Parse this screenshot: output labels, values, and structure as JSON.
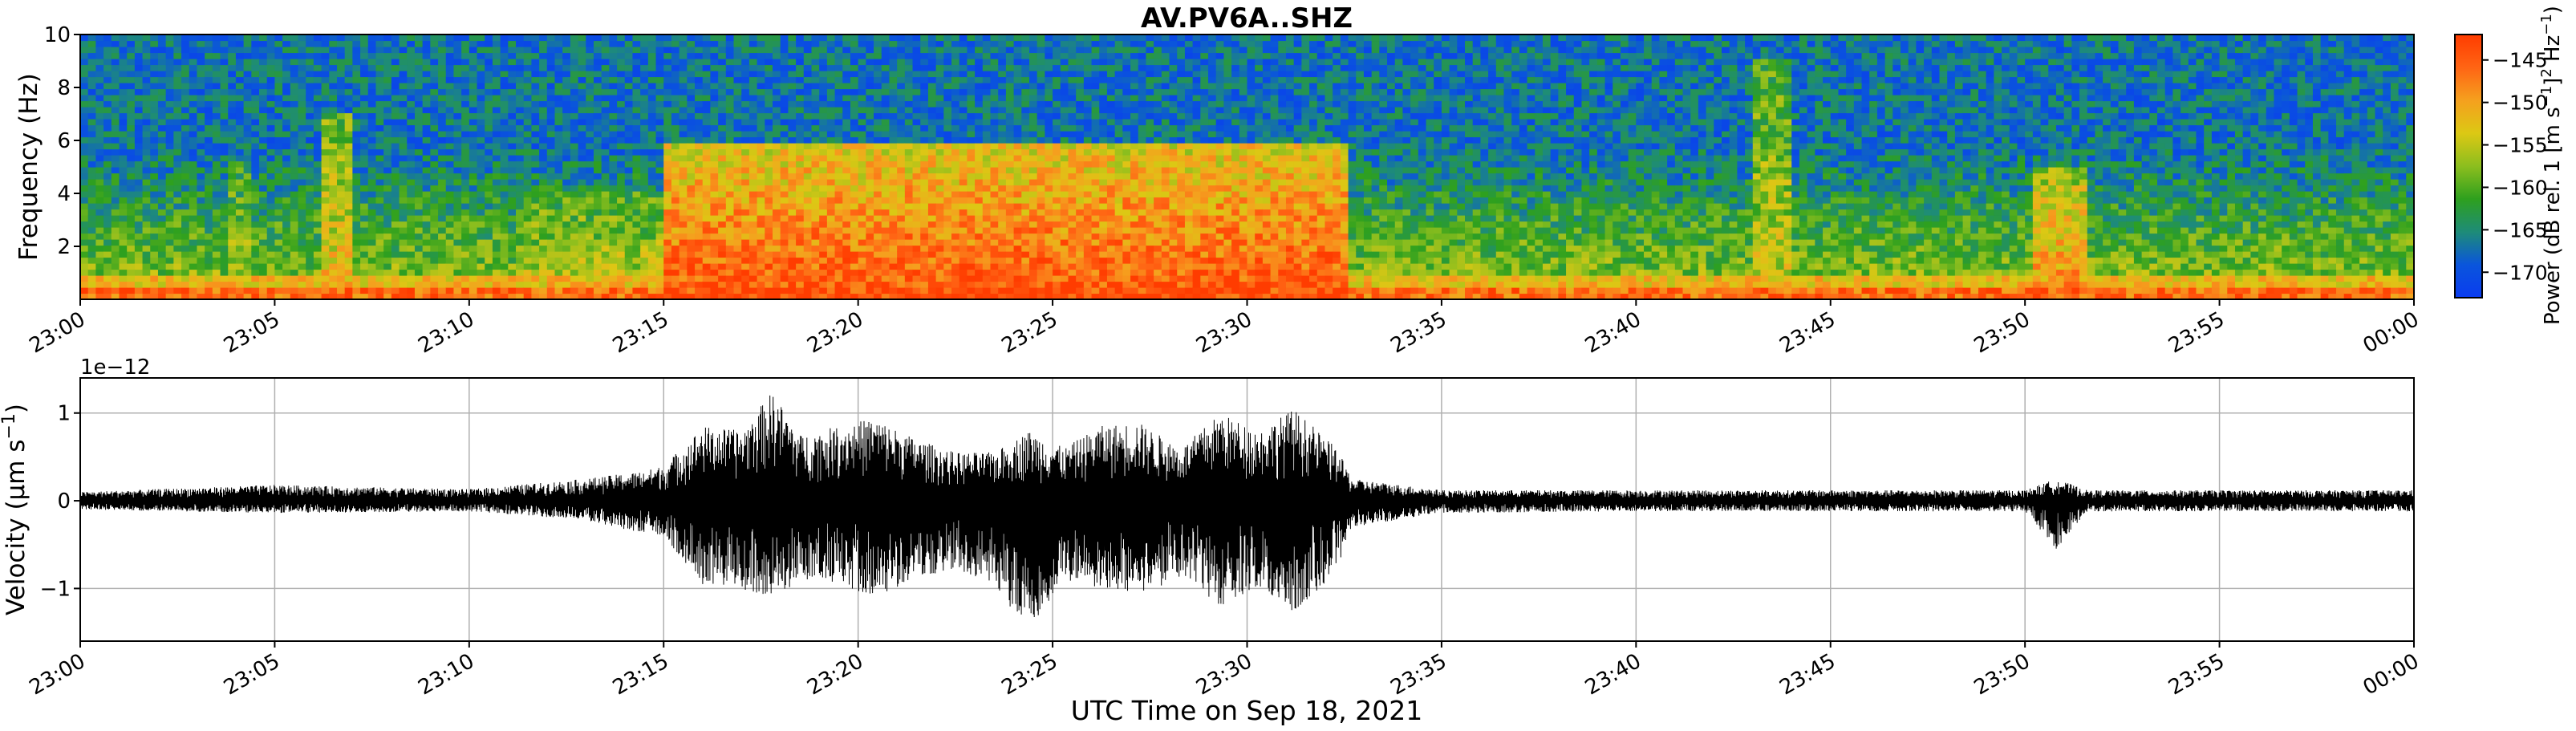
{
  "chart_data": [
    {
      "type": "heatmap",
      "title": "AV.PV6A..SHZ",
      "ylabel": "Frequency (Hz)",
      "ylim": [
        0,
        10
      ],
      "yticks": [
        2,
        4,
        6,
        8,
        10
      ],
      "xlim": [
        "23:00",
        "00:00"
      ],
      "xticks": [
        "23:00",
        "23:05",
        "23:10",
        "23:15",
        "23:20",
        "23:25",
        "23:30",
        "23:35",
        "23:40",
        "23:45",
        "23:50",
        "23:55",
        "00:00"
      ],
      "colorbar": {
        "label_main": "Power (dB rel. 1 [m s",
        "label_sup1": "−1",
        "label_mid": "]",
        "label_sup2": "2",
        "label_mid2": " Hz",
        "label_sup3": "−1",
        "label_end": ")",
        "range": [
          -173,
          -142
        ],
        "ticks": [
          "−145",
          "−150",
          "−155",
          "−160",
          "−165",
          "−170"
        ],
        "tick_values": [
          -145,
          -150,
          -155,
          -160,
          -165,
          -170
        ],
        "colors": [
          "#0a3cf0",
          "#0a55dc",
          "#1e8c78",
          "#2ea01e",
          "#8cbe1e",
          "#dcc814",
          "#f5a01e",
          "#ff6414",
          "#ff3c00"
        ]
      },
      "events": [
        {
          "start_min": 3.9,
          "end_min": 4.3,
          "fmax_hz": 5.2,
          "level": 0.55
        },
        {
          "start_min": 6.2,
          "end_min": 6.9,
          "fmax_hz": 7.0,
          "level": 0.7
        },
        {
          "start_min": 11.5,
          "end_min": 15.0,
          "fmax_hz": 4.0,
          "level": 0.6
        },
        {
          "start_min": 15.0,
          "end_min": 32.5,
          "fmax_hz": 6.0,
          "level": 0.95
        },
        {
          "start_min": 33.0,
          "end_min": 36.0,
          "fmax_hz": 3.0,
          "level": 0.5
        },
        {
          "start_min": 43.0,
          "end_min": 44.0,
          "fmax_hz": 9.0,
          "level": 0.6
        },
        {
          "start_min": 50.3,
          "end_min": 51.5,
          "fmax_hz": 5.0,
          "level": 0.8
        }
      ]
    },
    {
      "type": "line",
      "ylabel_main": "Velocity (µm s",
      "ylabel_sup": "−1",
      "ylabel_end": ")",
      "xlabel": "UTC Time on Sep 18, 2021",
      "offset_text": "1e−12",
      "ylim": [
        -1.6,
        1.4
      ],
      "yticks": [
        1,
        0,
        -1
      ],
      "ytick_labels": [
        "1",
        "0",
        "−1"
      ],
      "grid": true,
      "xlim": [
        "23:00",
        "00:00"
      ],
      "xticks": [
        "23:00",
        "23:05",
        "23:10",
        "23:15",
        "23:20",
        "23:25",
        "23:30",
        "23:35",
        "23:40",
        "23:45",
        "23:50",
        "23:55",
        "00:00"
      ],
      "envelope": {
        "minutes": [
          0,
          5,
          10,
          13,
          14.5,
          15.0,
          16.0,
          17.0,
          17.8,
          18.5,
          19.5,
          20.4,
          21.5,
          22.5,
          23.5,
          24.4,
          25.3,
          26.2,
          27.2,
          28.3,
          29.3,
          30.3,
          31.2,
          32.3,
          32.7,
          35,
          40,
          45,
          50,
          50.8,
          51.6,
          55,
          60
        ],
        "max": [
          0.1,
          0.18,
          0.13,
          0.25,
          0.34,
          0.4,
          0.85,
          0.8,
          1.25,
          0.75,
          0.85,
          0.95,
          0.7,
          0.55,
          0.55,
          0.8,
          0.6,
          0.85,
          0.9,
          0.6,
          1.0,
          0.8,
          1.05,
          0.6,
          0.25,
          0.12,
          0.12,
          0.12,
          0.12,
          0.25,
          0.12,
          0.12,
          0.12
        ],
        "min": [
          -0.1,
          -0.14,
          -0.12,
          -0.22,
          -0.38,
          -0.4,
          -0.95,
          -1.0,
          -1.15,
          -0.9,
          -0.95,
          -1.1,
          -0.9,
          -0.8,
          -1.0,
          -1.5,
          -0.9,
          -1.0,
          -1.05,
          -0.9,
          -1.2,
          -1.0,
          -1.3,
          -0.8,
          -0.3,
          -0.14,
          -0.12,
          -0.12,
          -0.12,
          -0.55,
          -0.12,
          -0.12,
          -0.12
        ]
      }
    }
  ]
}
